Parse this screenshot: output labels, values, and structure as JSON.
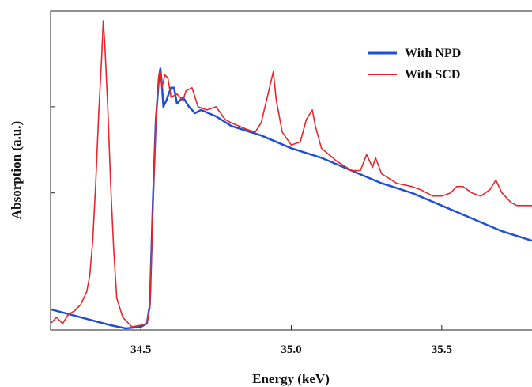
{
  "chart_data": {
    "type": "line",
    "title": "",
    "xlabel": "Energy (keV)",
    "ylabel": "Absorption (a.u.)",
    "xlim": [
      34.2,
      35.8
    ],
    "ylim": [
      0,
      1
    ],
    "x_ticks": [
      34.5,
      35.0,
      35.5
    ],
    "x_tick_labels": [
      "34.5",
      "35.0",
      "35.5"
    ],
    "y_ticks": [
      0.0,
      0.43,
      0.7
    ],
    "y_tick_labels": [
      "",
      "",
      ""
    ],
    "grid": false,
    "legend_position": "top-right",
    "series": [
      {
        "name": "With NPD",
        "color": "#1f4fd6",
        "points": [
          [
            34.2,
            0.065
          ],
          [
            34.3,
            0.04
          ],
          [
            34.4,
            0.015
          ],
          [
            34.45,
            0.005
          ],
          [
            34.5,
            0.01
          ],
          [
            34.52,
            0.02
          ],
          [
            34.53,
            0.08
          ],
          [
            34.54,
            0.4
          ],
          [
            34.55,
            0.66
          ],
          [
            34.56,
            0.79
          ],
          [
            34.565,
            0.82
          ],
          [
            34.57,
            0.77
          ],
          [
            34.575,
            0.7
          ],
          [
            34.585,
            0.72
          ],
          [
            34.6,
            0.76
          ],
          [
            34.61,
            0.76
          ],
          [
            34.62,
            0.71
          ],
          [
            34.64,
            0.73
          ],
          [
            34.66,
            0.7
          ],
          [
            34.68,
            0.68
          ],
          [
            34.7,
            0.69
          ],
          [
            34.75,
            0.67
          ],
          [
            34.8,
            0.64
          ],
          [
            34.9,
            0.61
          ],
          [
            35.0,
            0.57
          ],
          [
            35.1,
            0.54
          ],
          [
            35.2,
            0.5
          ],
          [
            35.3,
            0.46
          ],
          [
            35.4,
            0.43
          ],
          [
            35.5,
            0.39
          ],
          [
            35.6,
            0.35
          ],
          [
            35.7,
            0.31
          ],
          [
            35.8,
            0.28
          ]
        ]
      },
      {
        "name": "With SCD",
        "color": "#e8262a",
        "points": [
          [
            34.2,
            0.02
          ],
          [
            34.22,
            0.04
          ],
          [
            34.24,
            0.02
          ],
          [
            34.26,
            0.05
          ],
          [
            34.28,
            0.06
          ],
          [
            34.3,
            0.08
          ],
          [
            34.32,
            0.12
          ],
          [
            34.33,
            0.17
          ],
          [
            34.34,
            0.28
          ],
          [
            34.35,
            0.46
          ],
          [
            34.36,
            0.68
          ],
          [
            34.37,
            0.86
          ],
          [
            34.375,
            0.97
          ],
          [
            34.38,
            0.9
          ],
          [
            34.39,
            0.7
          ],
          [
            34.4,
            0.45
          ],
          [
            34.41,
            0.25
          ],
          [
            34.42,
            0.1
          ],
          [
            34.44,
            0.04
          ],
          [
            34.47,
            0.01
          ],
          [
            34.5,
            0.015
          ],
          [
            34.52,
            0.02
          ],
          [
            34.53,
            0.07
          ],
          [
            34.54,
            0.38
          ],
          [
            34.55,
            0.66
          ],
          [
            34.56,
            0.8
          ],
          [
            34.565,
            0.81
          ],
          [
            34.57,
            0.76
          ],
          [
            34.575,
            0.78
          ],
          [
            34.58,
            0.8
          ],
          [
            34.59,
            0.79
          ],
          [
            34.6,
            0.73
          ],
          [
            34.62,
            0.74
          ],
          [
            34.64,
            0.72
          ],
          [
            34.65,
            0.75
          ],
          [
            34.67,
            0.76
          ],
          [
            34.69,
            0.7
          ],
          [
            34.72,
            0.69
          ],
          [
            34.75,
            0.7
          ],
          [
            34.78,
            0.66
          ],
          [
            34.8,
            0.65
          ],
          [
            34.85,
            0.63
          ],
          [
            34.88,
            0.62
          ],
          [
            34.9,
            0.65
          ],
          [
            34.92,
            0.73
          ],
          [
            34.94,
            0.81
          ],
          [
            34.95,
            0.72
          ],
          [
            34.97,
            0.62
          ],
          [
            35.0,
            0.58
          ],
          [
            35.03,
            0.59
          ],
          [
            35.05,
            0.66
          ],
          [
            35.07,
            0.69
          ],
          [
            35.08,
            0.64
          ],
          [
            35.1,
            0.57
          ],
          [
            35.15,
            0.53
          ],
          [
            35.2,
            0.5
          ],
          [
            35.23,
            0.5
          ],
          [
            35.25,
            0.55
          ],
          [
            35.27,
            0.51
          ],
          [
            35.28,
            0.54
          ],
          [
            35.3,
            0.49
          ],
          [
            35.35,
            0.46
          ],
          [
            35.4,
            0.45
          ],
          [
            35.43,
            0.44
          ],
          [
            35.45,
            0.43
          ],
          [
            35.47,
            0.42
          ],
          [
            35.5,
            0.42
          ],
          [
            35.53,
            0.43
          ],
          [
            35.55,
            0.45
          ],
          [
            35.57,
            0.45
          ],
          [
            35.6,
            0.43
          ],
          [
            35.63,
            0.42
          ],
          [
            35.66,
            0.44
          ],
          [
            35.68,
            0.47
          ],
          [
            35.7,
            0.43
          ],
          [
            35.73,
            0.4
          ],
          [
            35.75,
            0.39
          ],
          [
            35.77,
            0.39
          ],
          [
            35.8,
            0.39
          ]
        ]
      }
    ]
  }
}
